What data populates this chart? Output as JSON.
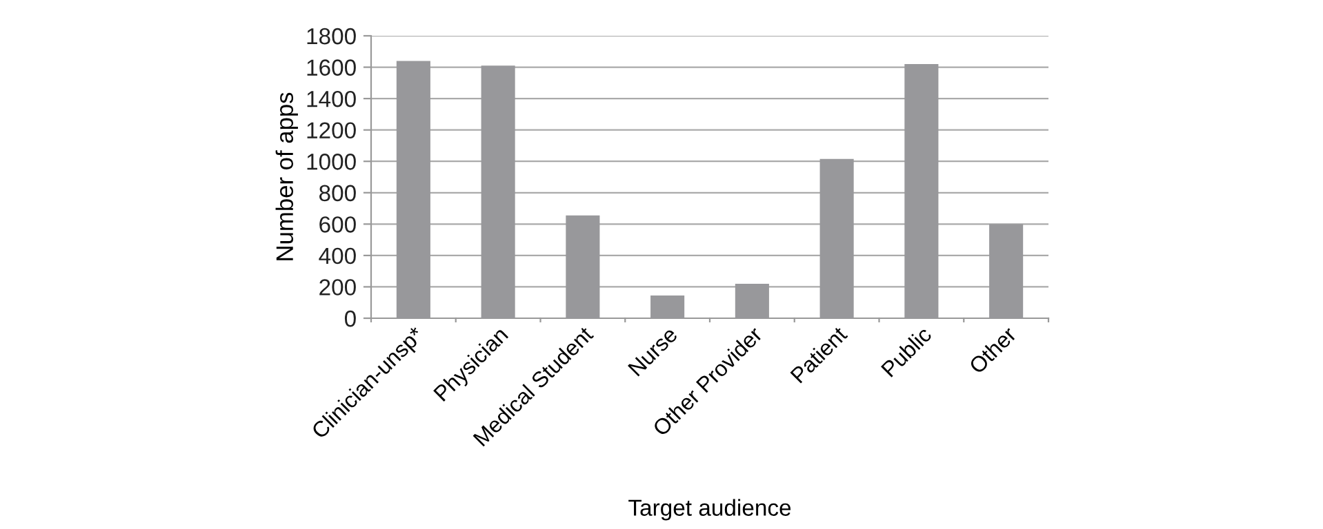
{
  "chart_data": {
    "type": "bar",
    "xlabel": "Target audience",
    "ylabel": "Number of apps",
    "categories": [
      "Clinician-unsp*",
      "Physician",
      "Medical Student",
      "Nurse",
      "Other Provider",
      "Patient",
      "Public",
      "Other"
    ],
    "values": [
      1640,
      1610,
      655,
      145,
      220,
      1015,
      1620,
      600
    ],
    "color": "#98989b",
    "ylim": [
      0,
      1800
    ],
    "yticks": [
      0,
      200,
      400,
      600,
      800,
      1000,
      1200,
      1400,
      1600,
      1800
    ],
    "grid": "y"
  }
}
